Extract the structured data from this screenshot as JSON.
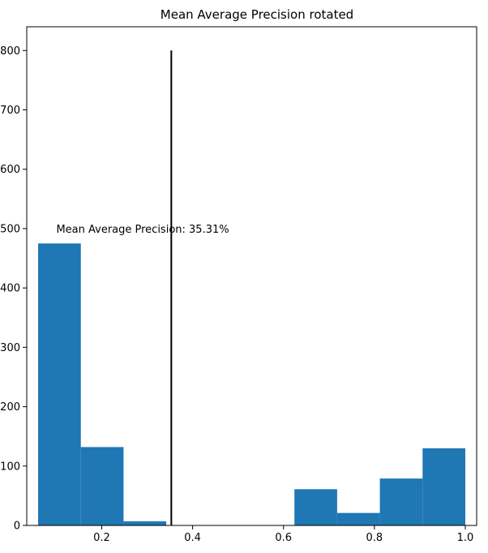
{
  "chart_data": {
    "type": "bar",
    "title": "Mean Average Precision rotated",
    "xlabel": "",
    "ylabel": "",
    "xlim": [
      0.035,
      1.025
    ],
    "ylim": [
      0,
      840
    ],
    "xticks": [
      0.2,
      0.4,
      0.6,
      0.8,
      1.0
    ],
    "xtick_labels": [
      "0.2",
      "0.4",
      "0.6",
      "0.8",
      "1.0"
    ],
    "yticks": [
      0,
      100,
      200,
      300,
      400,
      500,
      600,
      700,
      800
    ],
    "ytick_labels": [
      "0",
      "100",
      "200",
      "300",
      "400",
      "500",
      "600",
      "700",
      "800"
    ],
    "bar_color": "#1f77b4",
    "bins": [
      {
        "x0": 0.06,
        "x1": 0.154,
        "value": 475
      },
      {
        "x0": 0.154,
        "x1": 0.248,
        "value": 132
      },
      {
        "x0": 0.248,
        "x1": 0.342,
        "value": 7
      },
      {
        "x0": 0.342,
        "x1": 0.436,
        "value": 0
      },
      {
        "x0": 0.436,
        "x1": 0.53,
        "value": 0
      },
      {
        "x0": 0.53,
        "x1": 0.624,
        "value": 0
      },
      {
        "x0": 0.624,
        "x1": 0.718,
        "value": 61
      },
      {
        "x0": 0.718,
        "x1": 0.812,
        "value": 21
      },
      {
        "x0": 0.812,
        "x1": 0.906,
        "value": 79
      },
      {
        "x0": 0.906,
        "x1": 1.0,
        "value": 130
      }
    ],
    "vline": {
      "x": 0.3531,
      "ymin": 0,
      "ymax": 800,
      "color": "#000000"
    },
    "annotation": {
      "text": "Mean Average Precision: 35.31%",
      "x": 0.1,
      "y": 500
    },
    "grid": false,
    "legend": "none"
  }
}
